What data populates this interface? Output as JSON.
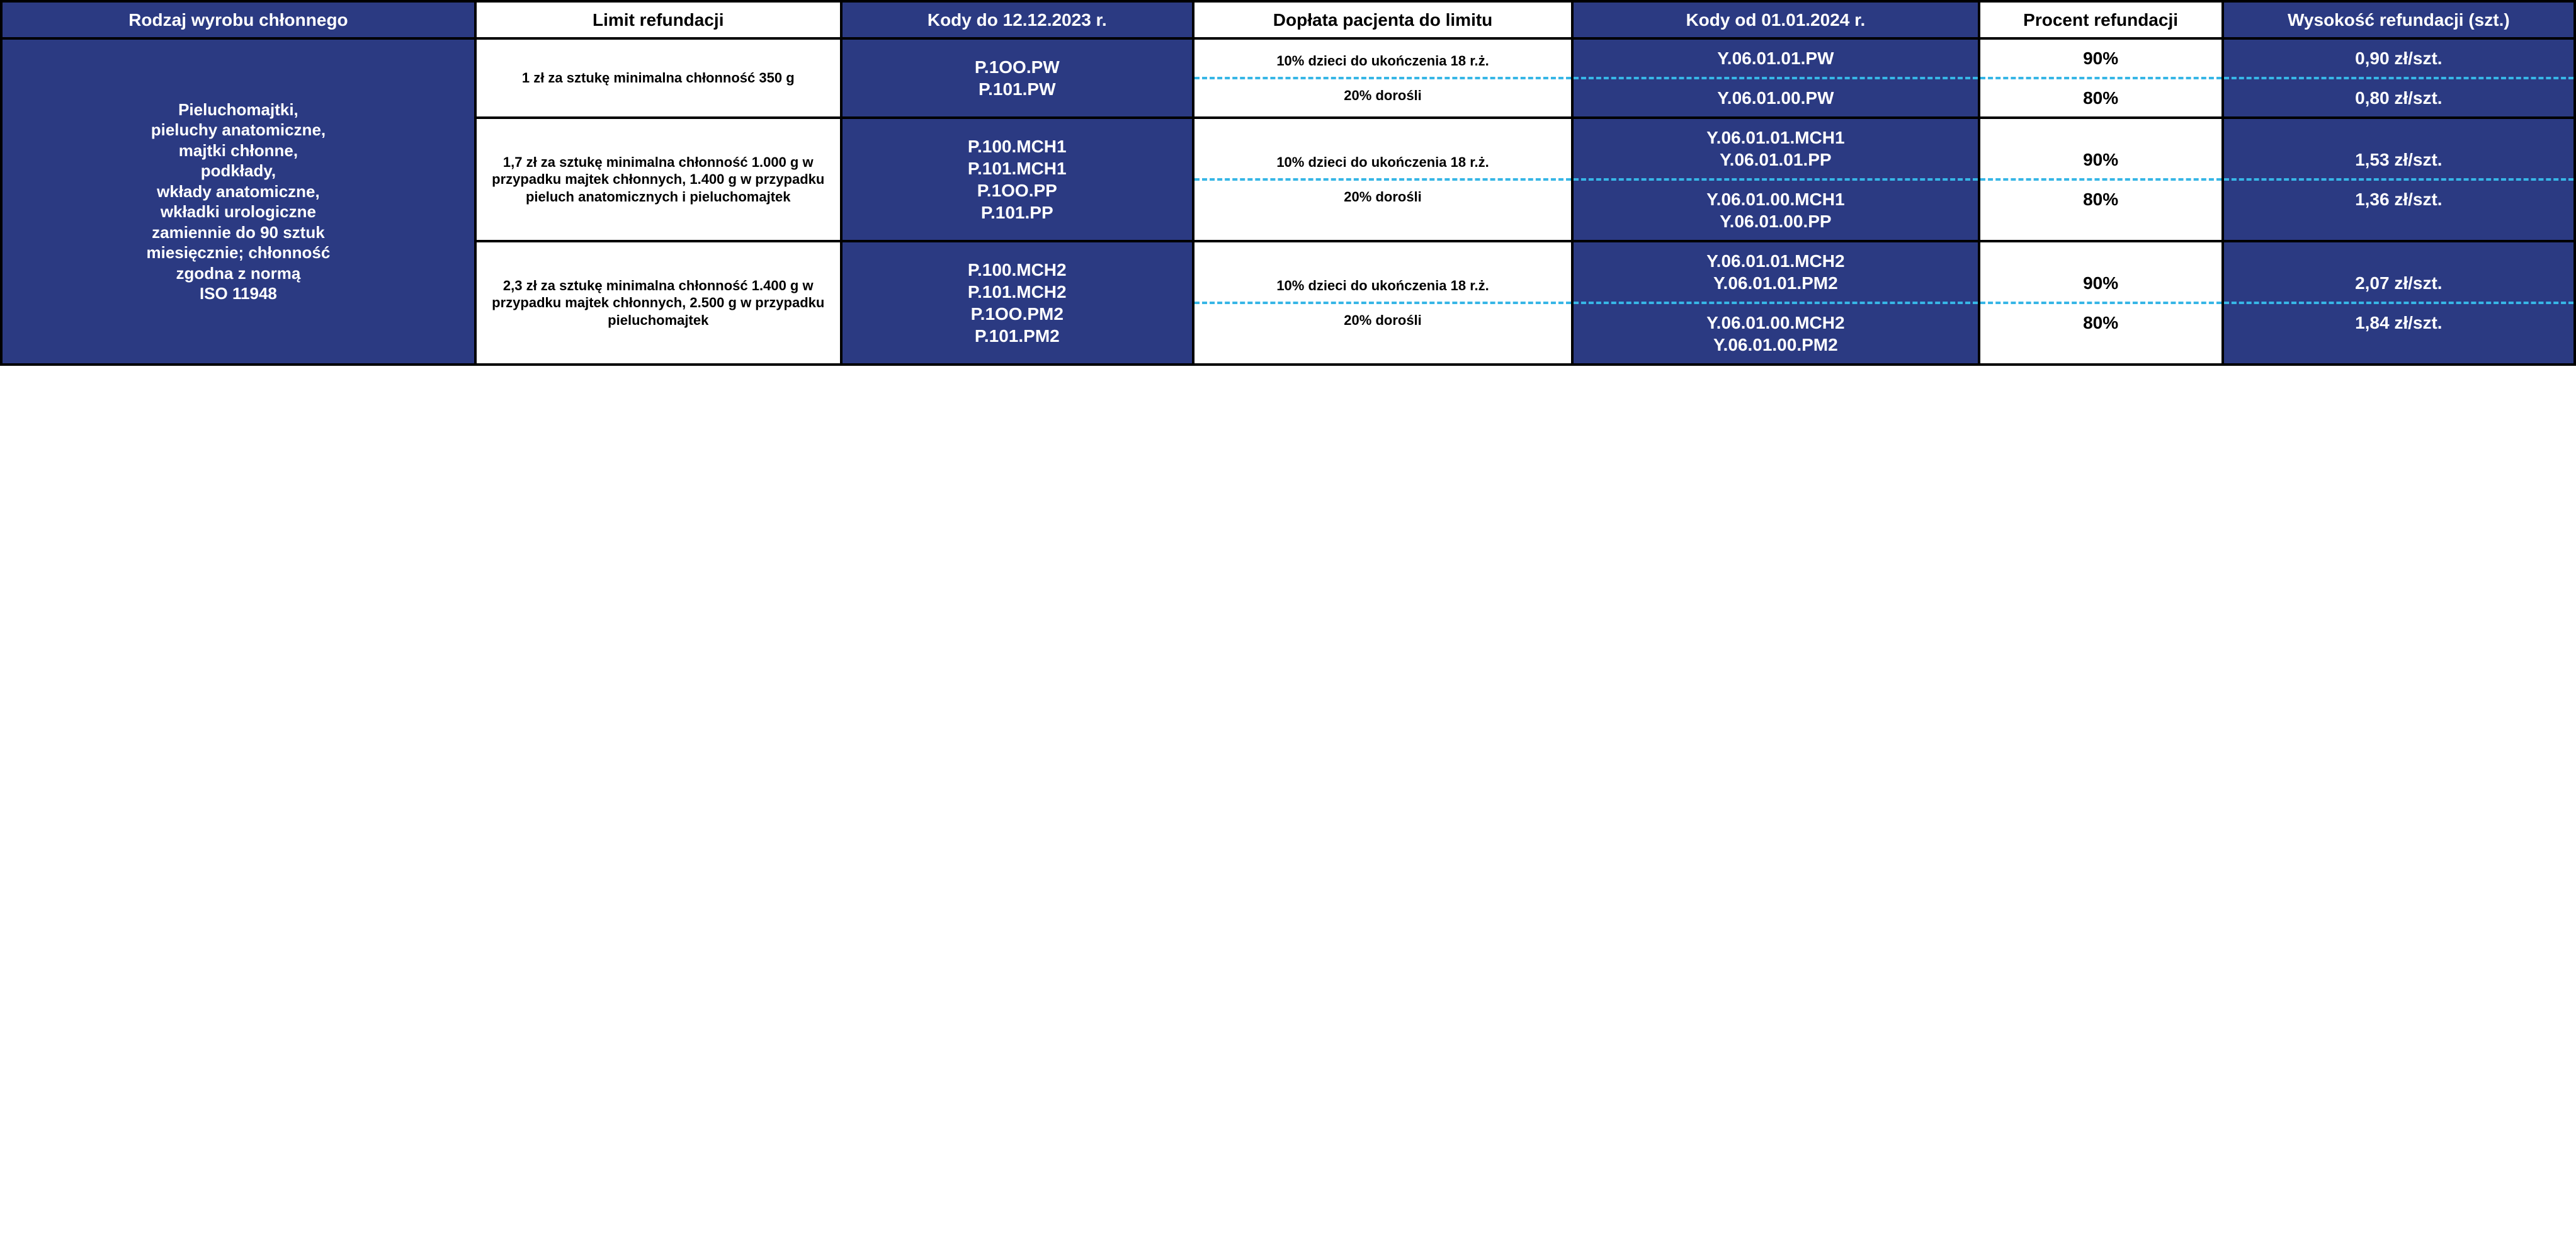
{
  "colors": {
    "blue": "#2b3a82",
    "dash": "#37b6e6",
    "black": "#000000",
    "white": "#ffffff"
  },
  "headers": {
    "c1": "Rodzaj wyrobu chłonnego",
    "c2": "Limit refundacji",
    "c3": "Kody do 12.12.2023 r.",
    "c4": "Dopłata pacjenta do limitu",
    "c5": "Kody od 01.01.2024 r.",
    "c6": "Procent refundacji",
    "c7": "Wysokość refundacji (szt.)"
  },
  "rowgroup_label": "Pieluchomajtki,\npieluchy anatomiczne,\nmajtki chłonne,\npodkłady,\nwkłady anatomiczne,\nwkładki urologiczne\nzamiennie do 90 sztuk\nmiesięcznie; chłonność\nzgodna z normą\nISO 11948",
  "groups": [
    {
      "limit": "1 zł za sztukę minimalna chłonność 350 g",
      "codes_old": [
        "P.1OO.PW",
        "P.101.PW"
      ],
      "sub": [
        {
          "doplata": "10% dzieci do ukończenia 18 r.ż.",
          "codes_new": [
            "Y.06.01.01.PW"
          ],
          "procent": "90%",
          "wysokosc": "0,90 zł/szt."
        },
        {
          "doplata": "20% dorośli",
          "codes_new": [
            "Y.06.01.00.PW"
          ],
          "procent": "80%",
          "wysokosc": "0,80 zł/szt."
        }
      ]
    },
    {
      "limit": "1,7 zł za sztukę minimalna chłonność 1.000 g w przypadku majtek chłonnych, 1.400 g w przypadku pieluch anatomicznych i pieluchomajtek",
      "codes_old": [
        "P.100.MCH1",
        "P.101.MCH1",
        "P.1OO.PP",
        "P.101.PP"
      ],
      "sub": [
        {
          "doplata": "10% dzieci do ukończenia 18 r.ż.",
          "codes_new": [
            "Y.06.01.01.MCH1",
            "Y.06.01.01.PP"
          ],
          "procent": "90%",
          "wysokosc": "1,53 zł/szt."
        },
        {
          "doplata": "20% dorośli",
          "codes_new": [
            "Y.06.01.00.MCH1",
            "Y.06.01.00.PP"
          ],
          "procent": "80%",
          "wysokosc": "1,36 zł/szt."
        }
      ]
    },
    {
      "limit": "2,3 zł za sztukę minimalna chłonność 1.400 g w przypadku majtek chłonnych, 2.500 g w przypadku pieluchomajtek",
      "codes_old": [
        "P.100.MCH2",
        "P.101.MCH2",
        "P.1OO.PM2",
        "P.101.PM2"
      ],
      "sub": [
        {
          "doplata": "10% dzieci do ukończenia 18 r.ż.",
          "codes_new": [
            "Y.06.01.01.MCH2",
            "Y.06.01.01.PM2"
          ],
          "procent": "90%",
          "wysokosc": "2,07 zł/szt."
        },
        {
          "doplata": "20% dorośli",
          "codes_new": [
            "Y.06.01.00.MCH2",
            "Y.06.01.00.PM2"
          ],
          "procent": "80%",
          "wysokosc": "1,84 zł/szt."
        }
      ]
    }
  ]
}
